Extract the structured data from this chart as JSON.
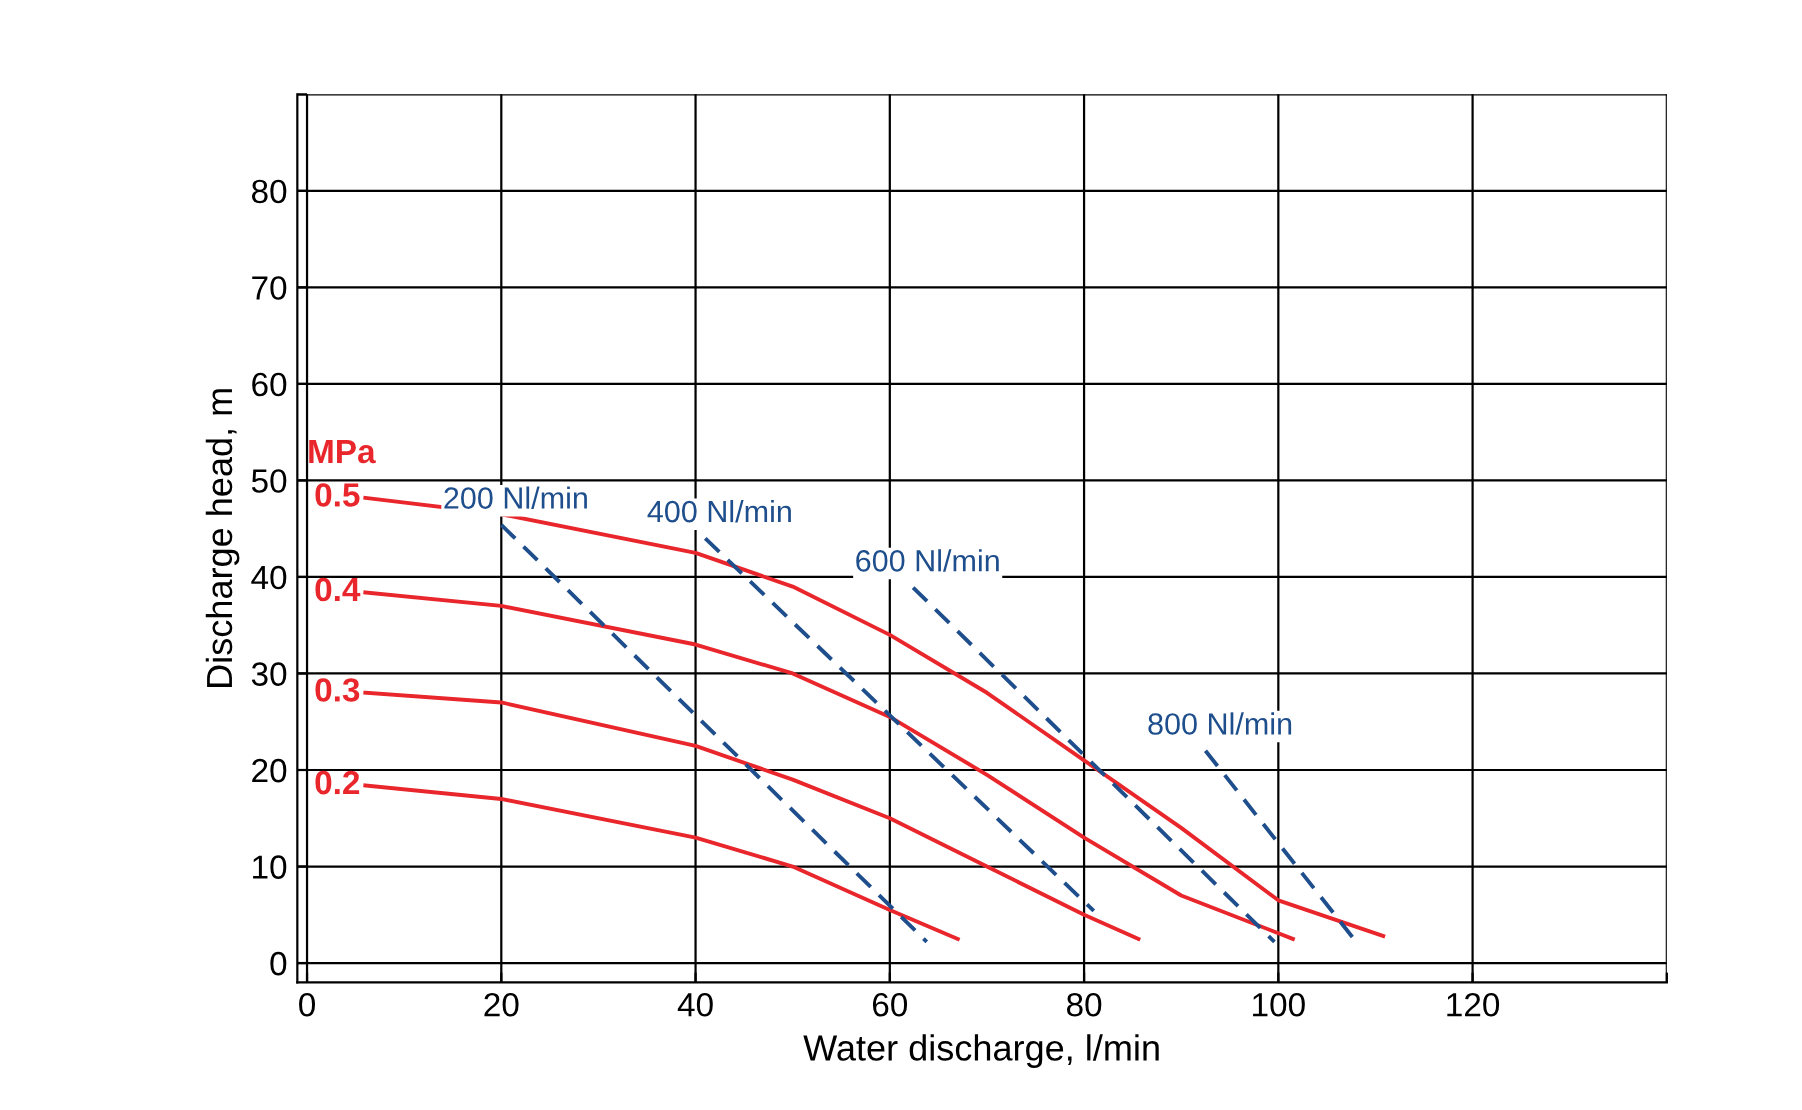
{
  "chart_data": {
    "type": "line",
    "xlabel": "Water discharge, l/min",
    "ylabel": "Discharge head, m",
    "xlim": [
      -1,
      140
    ],
    "ylim": [
      -2,
      90
    ],
    "xticks": [
      0,
      20,
      40,
      60,
      80,
      100,
      120,
      {
        "value": 140,
        "label": null
      }
    ],
    "yticks": [
      0,
      10,
      20,
      30,
      40,
      50,
      60,
      70,
      80,
      {
        "value": 90,
        "label": null
      }
    ],
    "grid": true,
    "legend": false,
    "marker": "none",
    "annotations": [
      "MPa"
    ],
    "series": [
      {
        "name": "0.5",
        "color": "#e8262b",
        "line_style": "solid",
        "x": [
          6,
          20,
          40,
          50,
          60,
          70,
          80,
          90,
          100,
          110.8
        ],
        "values": [
          48.2,
          46.5,
          42.5,
          39,
          34,
          28,
          21,
          14,
          6.5,
          2.8
        ]
      },
      {
        "name": "0.4",
        "color": "#e8262b",
        "line_style": "solid",
        "x": [
          6,
          20,
          40,
          50,
          60,
          70,
          80,
          90,
          101.5
        ],
        "values": [
          38.4,
          37,
          33,
          30,
          25.5,
          19.5,
          13,
          7,
          2.5
        ]
      },
      {
        "name": "0.3",
        "color": "#e8262b",
        "line_style": "solid",
        "x": [
          6,
          20,
          40,
          50,
          60,
          70,
          80,
          85.6
        ],
        "values": [
          28,
          27,
          22.5,
          19,
          15,
          10,
          5,
          2.5
        ]
      },
      {
        "name": "0.2",
        "color": "#e8262b",
        "line_style": "solid",
        "x": [
          6,
          20,
          40,
          50,
          60,
          67
        ],
        "values": [
          18.4,
          17,
          13,
          10,
          5.5,
          2.5
        ]
      },
      {
        "name": "200 Nl/min",
        "color": "#1f4e8c",
        "line_style": "dashed",
        "x": [
          20,
          63.8
        ],
        "values": [
          45.4,
          2.2
        ]
      },
      {
        "name": "400 Nl/min",
        "color": "#1f4e8c",
        "line_style": "dashed",
        "x": [
          41,
          81
        ],
        "values": [
          44,
          5.4
        ]
      },
      {
        "name": "600 Nl/min",
        "color": "#1f4e8c",
        "line_style": "dashed",
        "x": [
          62.4,
          99.6
        ],
        "values": [
          38.9,
          2.2
        ]
      },
      {
        "name": "800 Nl/min",
        "color": "#1f4e8c",
        "line_style": "dashed",
        "x": [
          92.5,
          107.7
        ],
        "values": [
          22,
          2.6
        ]
      }
    ]
  }
}
